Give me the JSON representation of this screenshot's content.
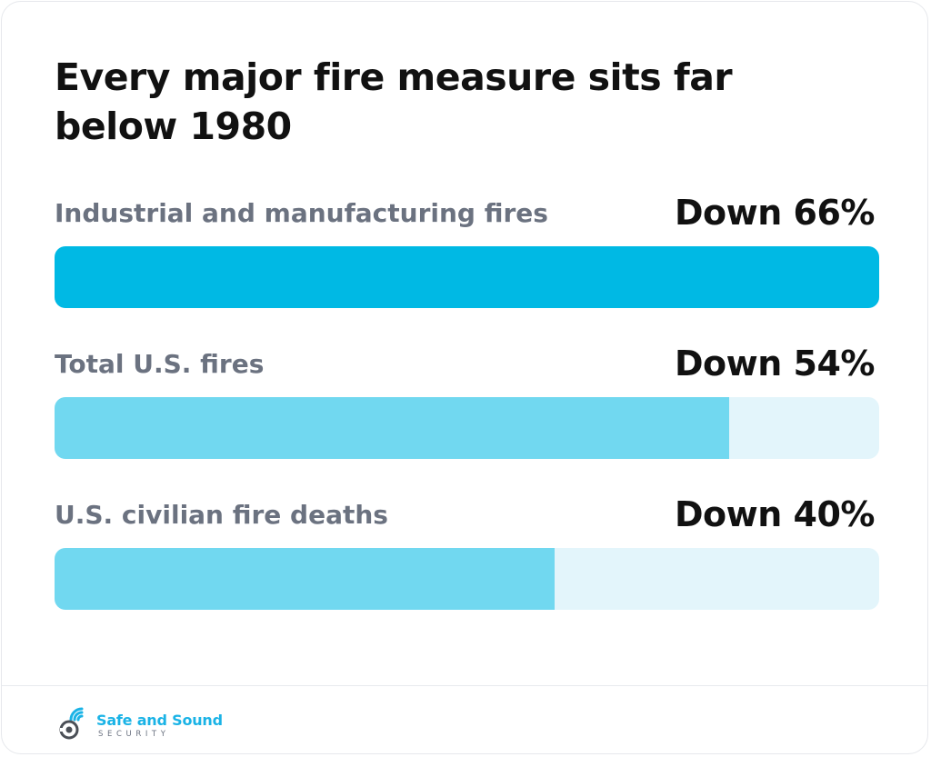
{
  "chart_data": {
    "type": "bar",
    "orientation": "horizontal",
    "title": "Every major fire measure sits far below 1980",
    "categories": [
      "Industrial and manufacturing fires",
      "Total U.S. fires",
      "U.S. civilian fire deaths"
    ],
    "values": [
      66,
      54,
      40
    ],
    "value_labels": [
      "Down 66%",
      "Down 54%",
      "Down 40%"
    ],
    "unit": "%",
    "xlim": [
      0,
      66
    ],
    "grid": false,
    "legend": "none",
    "colors": {
      "highlight": "#00b9e4",
      "bar": "#71d8f0",
      "track": "#e3f5fb"
    }
  },
  "brand": {
    "name_primary": "Safe and Sound",
    "name_secondary": "SECURITY",
    "icon": "wifi-camera-logo-icon",
    "colors": {
      "primary": "#1ab3e6",
      "dark": "#4b4f56"
    }
  }
}
